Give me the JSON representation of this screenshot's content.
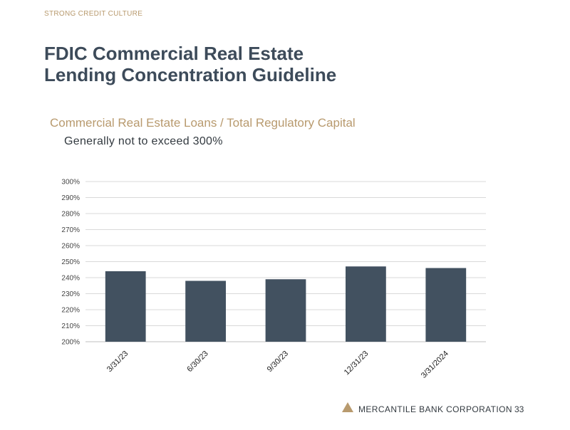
{
  "header": {
    "section_label": "STRONG CREDIT CULTURE",
    "title_line1": "FDIC Commercial Real Estate",
    "title_line2": "Lending Concentration Guideline",
    "subtitle": "Commercial Real Estate Loans / Total Regulatory Capital",
    "subtext": "Generally not to exceed 300%"
  },
  "footer": {
    "company": "MERCANTILE BANK CORPORATION",
    "page_number": "33"
  },
  "colors": {
    "bar": "#425160",
    "accent": "#b89a6e",
    "title": "#3d4b5a",
    "grid": "#d9d9d9"
  },
  "chart_data": {
    "type": "bar",
    "categories": [
      "3/31/23",
      "6/30/23",
      "9/30/23",
      "12/31/23",
      "3/31/2024"
    ],
    "values": [
      244,
      238,
      239,
      247,
      246
    ],
    "y_ticks": [
      "300%",
      "290%",
      "280%",
      "270%",
      "260%",
      "250%",
      "240%",
      "230%",
      "220%",
      "210%",
      "200%"
    ],
    "ylim": [
      200,
      300
    ],
    "y_step": 10,
    "title": "",
    "xlabel": "",
    "ylabel": "",
    "grid": true,
    "value_format": "percent"
  }
}
